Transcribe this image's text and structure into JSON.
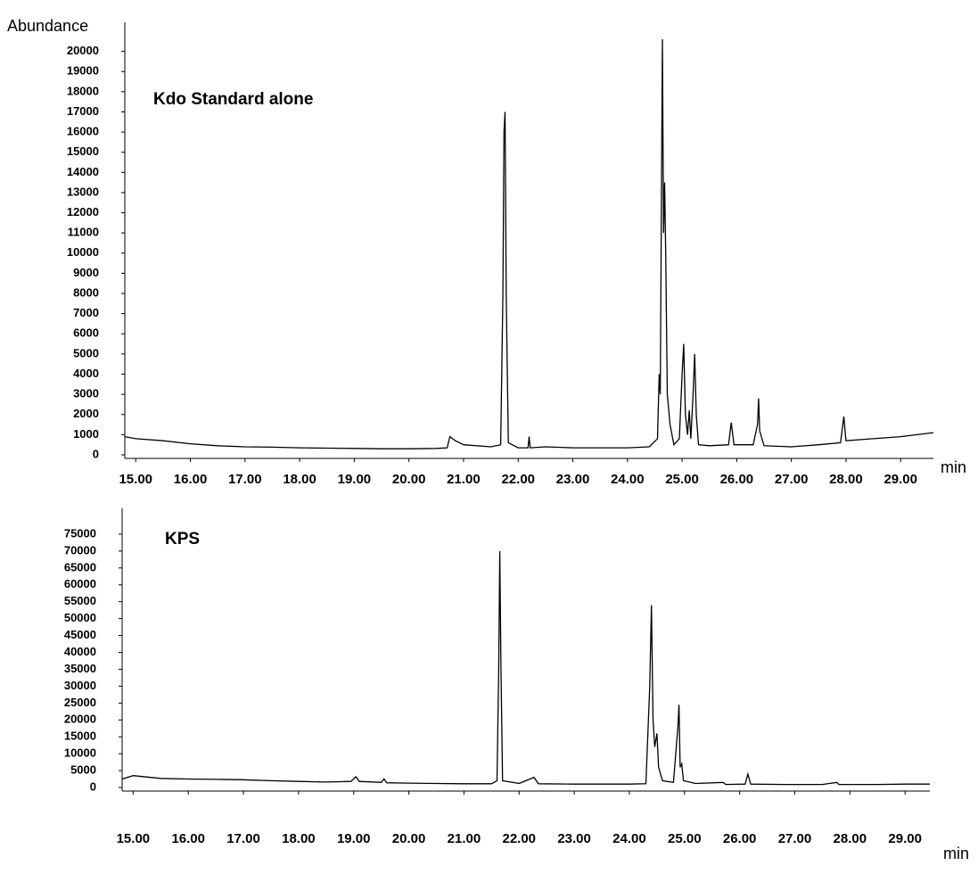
{
  "chart_data": [
    {
      "type": "line",
      "y_label": "Abundance",
      "x_label": "min",
      "annotation": "Kdo Standard alone",
      "color": "#000000",
      "xlim": [
        14.8,
        29.6
      ],
      "ylim": [
        0,
        21000
      ],
      "xticks": [
        {
          "value": 15,
          "label": "15.00"
        },
        {
          "value": 16,
          "label": "16.00"
        },
        {
          "value": 17,
          "label": "17.00"
        },
        {
          "value": 18,
          "label": "18.00"
        },
        {
          "value": 19,
          "label": "19.00"
        },
        {
          "value": 20,
          "label": "20.00"
        },
        {
          "value": 21,
          "label": "21.00"
        },
        {
          "value": 22,
          "label": "22.00"
        },
        {
          "value": 23,
          "label": "23.00"
        },
        {
          "value": 24,
          "label": "24.00"
        },
        {
          "value": 25,
          "label": "25.00"
        },
        {
          "value": 26,
          "label": "26.00"
        },
        {
          "value": 27,
          "label": "27.00"
        },
        {
          "value": 28,
          "label": "28.00"
        },
        {
          "value": 29,
          "label": "29.00"
        }
      ],
      "yticks": [
        0,
        1000,
        2000,
        3000,
        4000,
        5000,
        6000,
        7000,
        8000,
        9000,
        10000,
        11000,
        12000,
        13000,
        14000,
        15000,
        16000,
        17000,
        18000,
        19000,
        20000
      ],
      "x": [
        14.8,
        15.0,
        15.5,
        16.0,
        16.5,
        17.0,
        17.5,
        18.0,
        18.5,
        19.0,
        19.5,
        20.0,
        20.5,
        20.7,
        20.75,
        20.85,
        21.0,
        21.5,
        21.68,
        21.72,
        21.74,
        21.76,
        21.78,
        21.82,
        22.0,
        22.18,
        22.2,
        22.22,
        22.5,
        23.0,
        23.5,
        24.0,
        24.4,
        24.55,
        24.58,
        24.6,
        24.64,
        24.66,
        24.68,
        24.7,
        24.73,
        24.78,
        24.85,
        24.95,
        25.0,
        25.03,
        25.06,
        25.1,
        25.13,
        25.16,
        25.2,
        25.23,
        25.26,
        25.3,
        25.5,
        25.85,
        25.9,
        25.95,
        26.3,
        26.38,
        26.4,
        26.42,
        26.5,
        27.0,
        27.5,
        27.9,
        27.96,
        28.0,
        28.5,
        29.0,
        29.3,
        29.6
      ],
      "values": [
        900,
        800,
        700,
        550,
        450,
        400,
        380,
        350,
        330,
        320,
        300,
        300,
        320,
        350,
        900,
        700,
        500,
        400,
        500,
        8000,
        16000,
        17000,
        8000,
        600,
        350,
        350,
        900,
        350,
        400,
        350,
        350,
        350,
        400,
        800,
        4000,
        3000,
        20600,
        11000,
        13500,
        10000,
        3000,
        1500,
        500,
        800,
        4000,
        5500,
        2000,
        1000,
        2200,
        800,
        3000,
        5000,
        2000,
        500,
        450,
        500,
        1600,
        500,
        500,
        1500,
        2800,
        1200,
        450,
        400,
        500,
        600,
        1900,
        700,
        800,
        900,
        1000,
        1100
      ]
    },
    {
      "type": "line",
      "x_label": "min",
      "annotation": "KPS",
      "color": "#000000",
      "xlim": [
        14.8,
        29.45
      ],
      "ylim": [
        0,
        80000
      ],
      "xticks": [
        {
          "value": 15,
          "label": "15.00"
        },
        {
          "value": 16,
          "label": "16.00"
        },
        {
          "value": 17,
          "label": "17.00"
        },
        {
          "value": 18,
          "label": "18.00"
        },
        {
          "value": 19,
          "label": "19.00"
        },
        {
          "value": 20,
          "label": "20.00"
        },
        {
          "value": 21,
          "label": "21.00"
        },
        {
          "value": 22,
          "label": "22.00"
        },
        {
          "value": 23,
          "label": "23.00"
        },
        {
          "value": 24,
          "label": "24.00"
        },
        {
          "value": 25,
          "label": "25.00"
        },
        {
          "value": 26,
          "label": "26.00"
        },
        {
          "value": 27,
          "label": "27.00"
        },
        {
          "value": 28,
          "label": "28.00"
        },
        {
          "value": 29,
          "label": "29.00"
        }
      ],
      "yticks": [
        0,
        5000,
        10000,
        15000,
        20000,
        25000,
        30000,
        35000,
        40000,
        45000,
        50000,
        55000,
        60000,
        65000,
        70000,
        75000
      ],
      "x": [
        14.8,
        15.0,
        15.5,
        16.0,
        16.5,
        16.97,
        17.5,
        18.0,
        18.5,
        18.95,
        19.04,
        19.1,
        19.5,
        19.55,
        19.6,
        20.0,
        20.5,
        21.0,
        21.5,
        21.6,
        21.63,
        21.65,
        21.67,
        21.7,
        22.0,
        22.27,
        22.35,
        23.0,
        23.5,
        24.0,
        24.3,
        24.37,
        24.4,
        24.43,
        24.46,
        24.5,
        24.53,
        24.6,
        24.8,
        24.88,
        24.9,
        24.92,
        24.95,
        24.98,
        25.2,
        25.7,
        25.75,
        26.1,
        26.15,
        26.2,
        26.8,
        27.5,
        27.76,
        27.8,
        28.5,
        29.0,
        29.45
      ],
      "values": [
        2500,
        3500,
        2700,
        2500,
        2400,
        2300,
        2000,
        1800,
        1600,
        1800,
        3200,
        1800,
        1500,
        2500,
        1400,
        1300,
        1200,
        1100,
        1100,
        2000,
        35000,
        70000,
        36000,
        2000,
        1200,
        3000,
        1100,
        1000,
        1000,
        1000,
        1100,
        30000,
        54000,
        20000,
        12000,
        16000,
        6000,
        2000,
        1500,
        18000,
        24500,
        6000,
        7000,
        2000,
        1200,
        1500,
        900,
        1000,
        4000,
        1000,
        900,
        900,
        1500,
        900,
        900,
        1000,
        1000
      ]
    }
  ]
}
